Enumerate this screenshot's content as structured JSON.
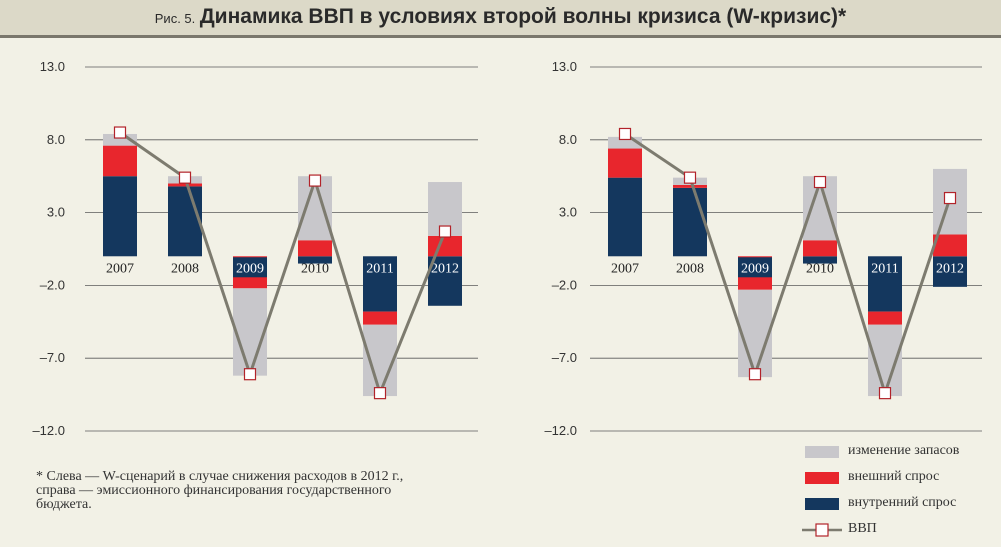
{
  "title": {
    "prefix": "Рис. 5.",
    "main": "Динамика ВВП в условиях второй волны кризиса (W-кризис)*"
  },
  "colors": {
    "stock": "#c8c7cb",
    "external": "#e8262d",
    "domestic": "#14375e",
    "gdp_line": "#7d7b6f",
    "marker_edge": "#b2232a"
  },
  "chart_data": [
    {
      "type": "bar",
      "stacked": true,
      "title": "",
      "xlabel": "",
      "ylabel": "",
      "ylim": [
        -12,
        13
      ],
      "yticks": [
        "13.0",
        "8.0",
        "3.0",
        "–2.0",
        "–7.0",
        "–12.0"
      ],
      "yticks_values": [
        13,
        8,
        3,
        -2,
        -7,
        -12
      ],
      "categories": [
        "2007",
        "2008",
        "2009",
        "2010",
        "2011",
        "2012"
      ],
      "series": [
        {
          "name": "внутренний спрос",
          "values": [
            5.5,
            4.8,
            0,
            -0.5,
            -3.8,
            -3.4
          ]
        },
        {
          "name": "внешний спрос",
          "values": [
            2.1,
            0.2,
            -2.2,
            1.1,
            -0.9,
            1.4
          ]
        },
        {
          "name": "изменение запасов",
          "values": [
            0.8,
            0.5,
            -6.0,
            4.4,
            -4.9,
            3.7
          ]
        },
        {
          "name": "ВВП",
          "type": "line",
          "values": [
            8.5,
            5.4,
            -8.1,
            5.2,
            -9.4,
            1.7
          ]
        }
      ]
    },
    {
      "type": "bar",
      "stacked": true,
      "title": "",
      "xlabel": "",
      "ylabel": "",
      "ylim": [
        -12,
        13
      ],
      "yticks": [
        "13.0",
        "8.0",
        "3.0",
        "–2.0",
        "–7.0",
        "–12.0"
      ],
      "yticks_values": [
        13,
        8,
        3,
        -2,
        -7,
        -12
      ],
      "categories": [
        "2007",
        "2008",
        "2009",
        "2010",
        "2011",
        "2012"
      ],
      "series": [
        {
          "name": "внутренний спрос",
          "values": [
            5.4,
            4.7,
            0,
            -0.5,
            -3.8,
            -2.1
          ]
        },
        {
          "name": "внешний спрос",
          "values": [
            2.0,
            0.2,
            -2.3,
            1.1,
            -0.9,
            1.5
          ]
        },
        {
          "name": "изменение запасов",
          "values": [
            0.8,
            0.5,
            -6.0,
            4.4,
            -4.9,
            4.5
          ]
        },
        {
          "name": "ВВП",
          "type": "line",
          "values": [
            8.4,
            5.4,
            -8.1,
            5.1,
            -9.4,
            4.0
          ]
        }
      ]
    }
  ],
  "legend": [
    "изменение запасов",
    "внешний спрос",
    "внутренний спрос",
    "ВВП"
  ],
  "footnote": "* Слева — W-сценарий в случае снижения расходов в 2012 г., справа — эмиссионного финансирования государственного бюджета."
}
